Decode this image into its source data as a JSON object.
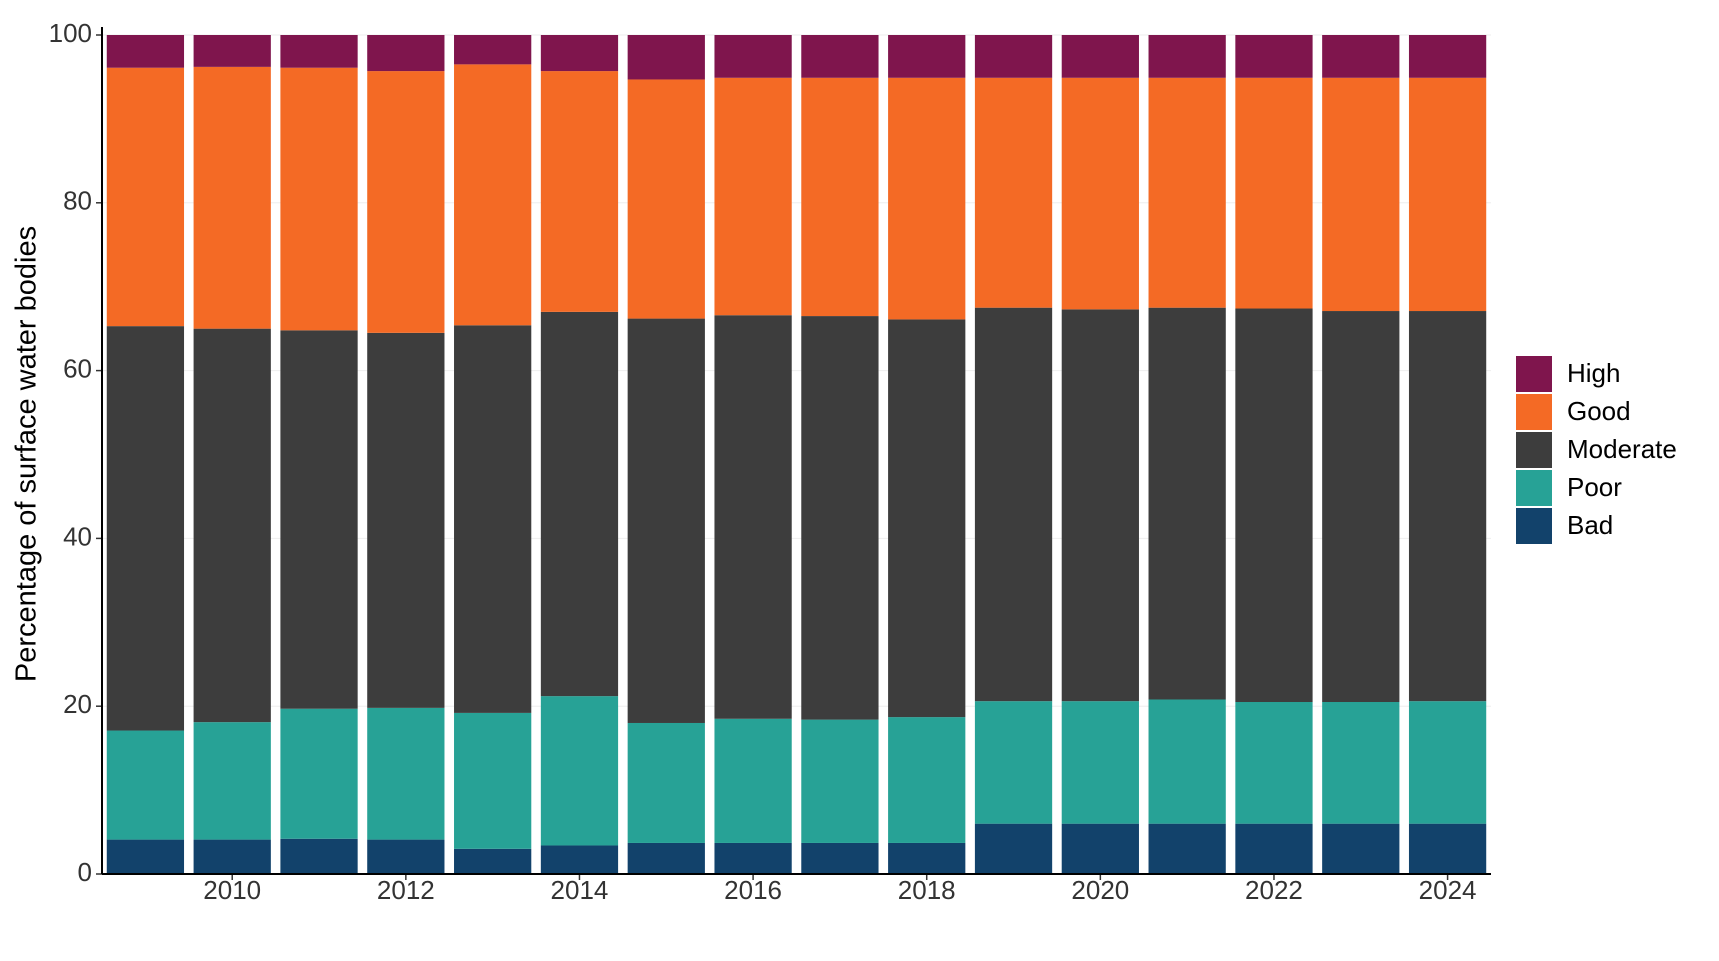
{
  "chart_data": {
    "type": "stacked_bar",
    "y_label": "Percentage of surface water bodies",
    "x": [
      2009,
      2010,
      2011,
      2012,
      2013,
      2014,
      2015,
      2016,
      2017,
      2018,
      2019,
      2020,
      2021,
      2022,
      2023,
      2024
    ],
    "xlim": [
      2008.5,
      2024.5
    ],
    "xticks": [
      2010,
      2012,
      2014,
      2016,
      2018,
      2020,
      2022,
      2024
    ],
    "ylim": [
      0,
      100
    ],
    "yticks": [
      0,
      20,
      40,
      60,
      80,
      100
    ],
    "grid": true,
    "legend": "right",
    "series": [
      {
        "name": "Bad",
        "color": "#12426b",
        "values": [
          4.1,
          4.1,
          4.2,
          4.1,
          3.0,
          3.4,
          3.7,
          3.7,
          3.7,
          3.7,
          6.0,
          6.0,
          6.0,
          6.0,
          6.0,
          6.0
        ]
      },
      {
        "name": "Poor",
        "color": "#27a296",
        "values": [
          13.0,
          14.0,
          15.5,
          15.7,
          16.2,
          17.8,
          14.3,
          14.8,
          14.7,
          15.0,
          14.6,
          14.6,
          14.8,
          14.5,
          14.5,
          14.6
        ]
      },
      {
        "name": "Moderate",
        "color": "#3d3d3d",
        "values": [
          48.2,
          46.9,
          45.1,
          44.7,
          46.2,
          45.8,
          48.2,
          48.1,
          48.1,
          47.4,
          46.9,
          46.7,
          46.7,
          46.9,
          46.6,
          46.5
        ]
      },
      {
        "name": "Good",
        "color": "#f46a25",
        "values": [
          30.8,
          31.2,
          31.3,
          31.2,
          31.1,
          28.7,
          28.5,
          28.3,
          28.4,
          28.8,
          27.4,
          27.6,
          27.4,
          27.5,
          27.8,
          27.8
        ]
      },
      {
        "name": "High",
        "color": "#7f154d",
        "values": [
          3.9,
          3.8,
          3.9,
          4.3,
          3.5,
          4.3,
          5.3,
          5.1,
          5.1,
          5.1,
          5.1,
          5.1,
          5.1,
          5.1,
          5.1,
          5.1
        ]
      }
    ]
  }
}
